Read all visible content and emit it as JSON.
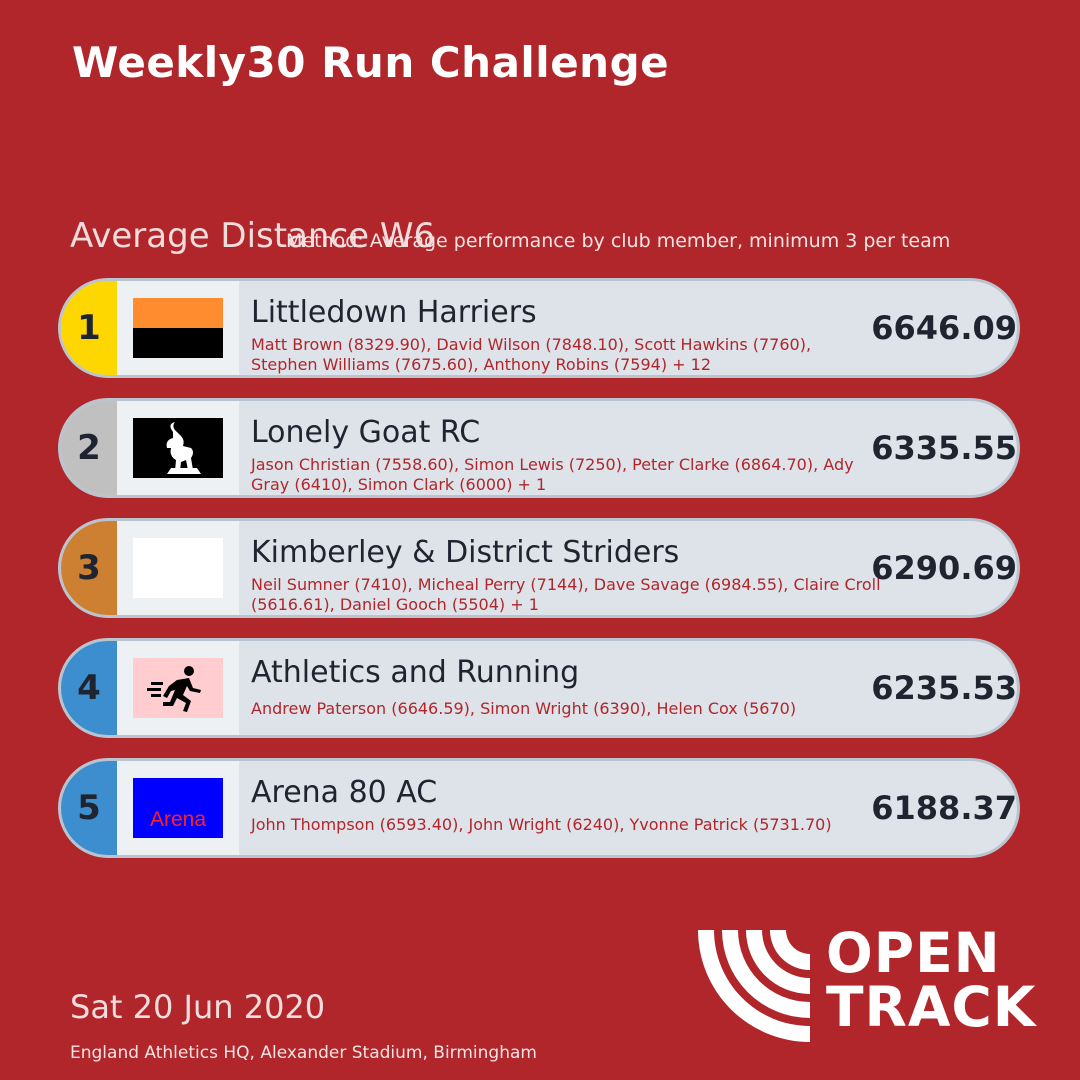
{
  "header": {
    "title": "Weekly30 Run Challenge",
    "subtitle": "Average Distance W6",
    "method": "Method: Average performance by club member, minimum 3 per team"
  },
  "rows": [
    {
      "rank": "1",
      "club": "Littledown Harriers",
      "members": "Matt Brown (8329.90), David Wilson (7848.10), Scott Hawkins (7760), Stephen Williams (7675.60), Anthony Robins (7594) + 12",
      "score": "6646.09",
      "rank_color": "#ffd700",
      "logo": "orange-black-flag-logo"
    },
    {
      "rank": "2",
      "club": "Lonely Goat RC",
      "members": "Jason Christian (7558.60), Simon Lewis (7250), Peter Clarke (6864.70), Ady Gray (6410), Simon Clark (6000) + 1",
      "score": "6335.55",
      "rank_color": "#c0c0c0",
      "logo": "goat-logo"
    },
    {
      "rank": "3",
      "club": "Kimberley & District Striders",
      "members": "Neil Sumner (7410), Micheal Perry (7144), Dave Savage (6984.55), Claire Croll (5616.61), Daniel Gooch (5504) + 1",
      "score": "6290.69",
      "rank_color": "#cd8032",
      "logo": "blank-white-logo"
    },
    {
      "rank": "4",
      "club": "Athletics and Running",
      "members": "Andrew Paterson (6646.59), Simon Wright (6390), Helen Cox (5670)",
      "score": "6235.53",
      "rank_color": "#3d8ecf",
      "logo": "runner-logo"
    },
    {
      "rank": "5",
      "club": "Arena 80 AC",
      "members": "John Thompson (6593.40), John Wright (6240), Yvonne Patrick (5731.70)",
      "score": "6188.37",
      "rank_color": "#3d8ecf",
      "logo": "arena-logo",
      "logo_text": "Arena"
    }
  ],
  "footer": {
    "date": "Sat 20 Jun 2020",
    "venue": "England Athletics HQ, Alexander Stadium, Birmingham",
    "brand_line1": "OPEN",
    "brand_line2": "TRACK"
  },
  "colors": {
    "background": "#b0262b",
    "row_background": "#dde3e9",
    "gold": "#ffd700",
    "silver": "#c0c0c0",
    "bronze": "#cd8032",
    "blue": "#3d8ecf"
  }
}
